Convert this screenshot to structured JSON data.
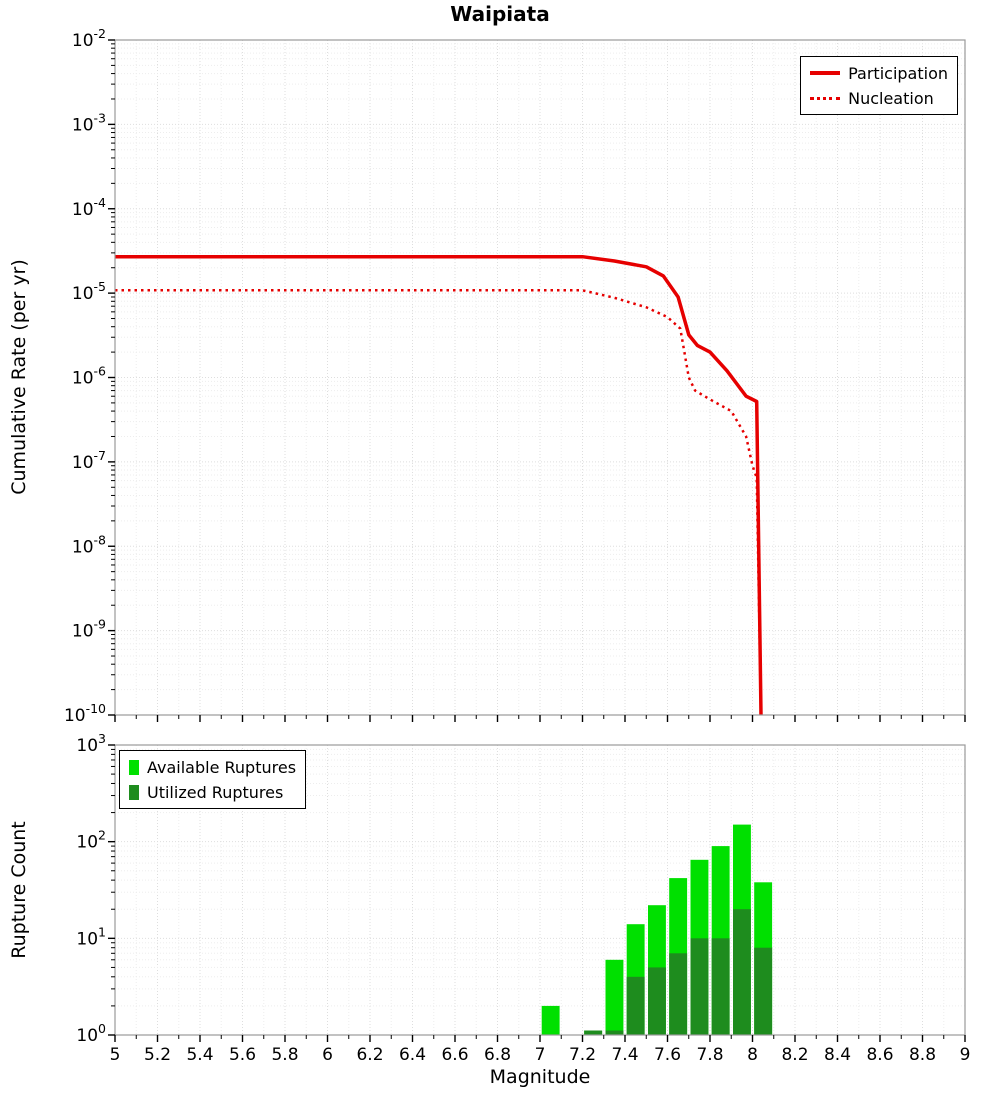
{
  "title": "Waipiata",
  "axes": {
    "xlabel": "Magnitude",
    "x_tick_labels": [
      "5",
      "5.2",
      "5.4",
      "5.6",
      "5.8",
      "6",
      "6.2",
      "6.4",
      "6.6",
      "6.8",
      "7",
      "7.2",
      "7.4",
      "7.6",
      "7.8",
      "8",
      "8.2",
      "8.4",
      "8.6",
      "8.8",
      "9"
    ],
    "top_y_exponents": [
      -2,
      -3,
      -4,
      -5,
      -6,
      -7,
      -8,
      -9,
      -10
    ],
    "bottom_y_exponents": [
      3,
      2,
      1,
      0
    ]
  },
  "colors": {
    "participation": "#e60000",
    "nucleation": "#e60000",
    "available": "#00e000",
    "utilized": "#1e8c1e",
    "grid_major": "#dedede",
    "grid_minor": "#ededed",
    "plot_border": "#9a9a9a",
    "tick": "#000000"
  },
  "chart_data": [
    {
      "type": "line",
      "title": "Waipiata",
      "xlabel": "Magnitude",
      "ylabel": "Cumulative Rate (per yr)",
      "xlim": [
        5,
        9
      ],
      "ylim": [
        1e-10,
        0.01
      ],
      "y_scale": "log",
      "grid": true,
      "legend_position": "top-right",
      "series": [
        {
          "name": "Participation",
          "style": "solid",
          "color": "#e60000",
          "points": [
            [
              5.0,
              2.7e-05
            ],
            [
              7.2,
              2.7e-05
            ],
            [
              7.35,
              2.4e-05
            ],
            [
              7.5,
              2.05e-05
            ],
            [
              7.58,
              1.6e-05
            ],
            [
              7.65,
              9e-06
            ],
            [
              7.7,
              3.2e-06
            ],
            [
              7.74,
              2.4e-06
            ],
            [
              7.8,
              2e-06
            ],
            [
              7.88,
              1.2e-06
            ],
            [
              7.97,
              6e-07
            ],
            [
              8.02,
              5.2e-07
            ],
            [
              8.04,
              1e-10
            ]
          ]
        },
        {
          "name": "Nucleation",
          "style": "dotted",
          "color": "#e60000",
          "points": [
            [
              5.0,
              1.08e-05
            ],
            [
              7.2,
              1.08e-05
            ],
            [
              7.35,
              8.8e-06
            ],
            [
              7.5,
              6.8e-06
            ],
            [
              7.6,
              5.2e-06
            ],
            [
              7.66,
              3.8e-06
            ],
            [
              7.7,
              1e-06
            ],
            [
              7.73,
              7e-07
            ],
            [
              7.8,
              5.5e-07
            ],
            [
              7.9,
              4e-07
            ],
            [
              7.97,
              2e-07
            ],
            [
              8.0,
              9e-08
            ],
            [
              8.02,
              6.5e-08
            ],
            [
              8.04,
              1e-10
            ]
          ]
        }
      ]
    },
    {
      "type": "bar",
      "ylabel": "Rupture Count",
      "xlim": [
        5,
        9
      ],
      "ylim": [
        1,
        1000
      ],
      "y_scale": "log",
      "grid": true,
      "legend_position": "top-left",
      "bin_width": 0.1,
      "bin_centers": [
        7.05,
        7.25,
        7.35,
        7.45,
        7.55,
        7.65,
        7.75,
        7.85,
        7.95,
        8.05
      ],
      "series": [
        {
          "name": "Available Ruptures",
          "color": "#00e000",
          "values": [
            2,
            1,
            6,
            14,
            22,
            42,
            65,
            90,
            150,
            38
          ]
        },
        {
          "name": "Utilized Ruptures",
          "color": "#1e8c1e",
          "values": [
            0,
            1,
            1,
            4,
            5,
            7,
            10,
            10,
            20,
            8
          ]
        }
      ]
    }
  ]
}
